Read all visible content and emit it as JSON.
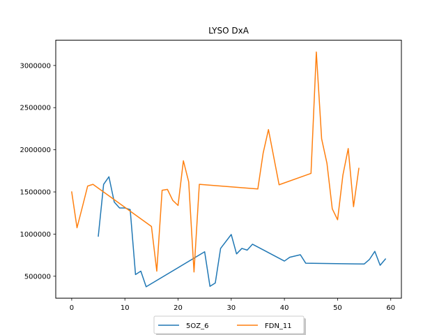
{
  "chart_data": {
    "type": "line",
    "title": "LYSO DxA",
    "xlabel": "",
    "ylabel": "",
    "xlim": [
      -3.0,
      62.0
    ],
    "ylim": [
      240000,
      3300000
    ],
    "xticks": [
      0,
      10,
      20,
      30,
      40,
      50,
      60
    ],
    "yticks": [
      500000,
      1000000,
      1500000,
      2000000,
      2500000,
      3000000
    ],
    "grid": false,
    "legend": "bottom-center",
    "series": [
      {
        "name": "5OZ_6",
        "color": "#1f77b4",
        "points": [
          [
            5,
            975000
          ],
          [
            6,
            1590000
          ],
          [
            7,
            1680000
          ],
          [
            8,
            1380000
          ],
          [
            9,
            1310000
          ],
          [
            10,
            1310000
          ],
          [
            11,
            1290000
          ],
          [
            12,
            520000
          ],
          [
            13,
            560000
          ],
          [
            14,
            375000
          ],
          [
            25,
            790000
          ],
          [
            26,
            380000
          ],
          [
            27,
            420000
          ],
          [
            28,
            830000
          ],
          [
            30,
            995000
          ],
          [
            31,
            765000
          ],
          [
            32,
            830000
          ],
          [
            33,
            810000
          ],
          [
            34,
            880000
          ],
          [
            40,
            680000
          ],
          [
            41,
            725000
          ],
          [
            43,
            755000
          ],
          [
            44,
            655000
          ],
          [
            55,
            645000
          ],
          [
            56,
            700000
          ],
          [
            57,
            795000
          ],
          [
            58,
            630000
          ],
          [
            59,
            705000
          ]
        ]
      },
      {
        "name": "FDN_11",
        "color": "#ff7f0e",
        "points": [
          [
            0,
            1500000
          ],
          [
            1,
            1075000
          ],
          [
            2,
            1320000
          ],
          [
            3,
            1570000
          ],
          [
            4,
            1590000
          ],
          [
            15,
            1090000
          ],
          [
            16,
            560000
          ],
          [
            17,
            1520000
          ],
          [
            18,
            1530000
          ],
          [
            19,
            1400000
          ],
          [
            20,
            1340000
          ],
          [
            21,
            1870000
          ],
          [
            22,
            1620000
          ],
          [
            23,
            550000
          ],
          [
            24,
            1590000
          ],
          [
            35,
            1535000
          ],
          [
            36,
            1960000
          ],
          [
            37,
            2240000
          ],
          [
            39,
            1585000
          ],
          [
            45,
            1720000
          ],
          [
            46,
            3160000
          ],
          [
            47,
            2130000
          ],
          [
            48,
            1840000
          ],
          [
            49,
            1300000
          ],
          [
            50,
            1170000
          ],
          [
            51,
            1700000
          ],
          [
            52,
            2015000
          ],
          [
            53,
            1325000
          ],
          [
            54,
            1780000
          ]
        ]
      }
    ]
  }
}
